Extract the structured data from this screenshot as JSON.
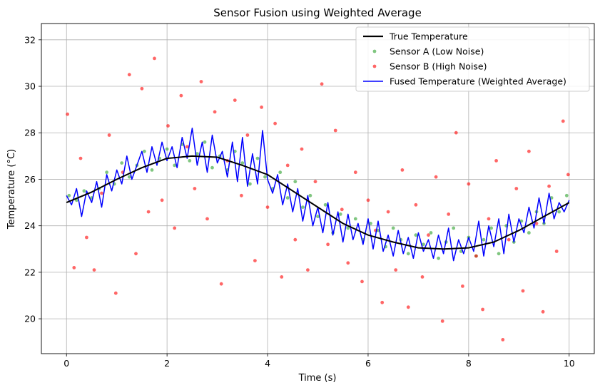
{
  "chart_data": {
    "type": "line",
    "title": "Sensor Fusion using Weighted Average",
    "xlabel": "Time (s)",
    "ylabel": "Temperature (°C)",
    "xlim": [
      -0.5,
      10.5
    ],
    "ylim": [
      18.5,
      32.7
    ],
    "xticks": [
      0,
      2,
      4,
      6,
      8,
      10
    ],
    "yticks": [
      20,
      22,
      24,
      26,
      28,
      30,
      32
    ],
    "grid": true,
    "legend_position": "top-right",
    "colors": {
      "true": "#000000",
      "sensor_a": "#2ca02c",
      "sensor_b": "#ff0000",
      "fused": "#0000ff"
    },
    "series": [
      {
        "name": "True Temperature",
        "kind": "line",
        "x": [
          0,
          0.5,
          1,
          1.5,
          2,
          2.5,
          3,
          3.5,
          4,
          4.5,
          5,
          5.5,
          6,
          6.5,
          7,
          7.5,
          8,
          8.5,
          9,
          9.5,
          10
        ],
        "y": [
          25.0,
          25.45,
          26.0,
          26.5,
          26.9,
          27.0,
          26.95,
          26.6,
          26.2,
          25.5,
          24.8,
          24.1,
          23.6,
          23.3,
          23.05,
          23.0,
          23.05,
          23.3,
          23.8,
          24.4,
          25.0
        ]
      },
      {
        "name": "Sensor A (Low Noise)",
        "kind": "scatter",
        "x": [
          0.05,
          0.2,
          0.35,
          0.5,
          0.65,
          0.8,
          0.95,
          1.1,
          1.25,
          1.4,
          1.55,
          1.7,
          1.85,
          2.0,
          2.15,
          2.3,
          2.45,
          2.6,
          2.75,
          2.9,
          3.05,
          3.2,
          3.35,
          3.5,
          3.65,
          3.8,
          3.95,
          4.1,
          4.25,
          4.4,
          4.55,
          4.7,
          4.85,
          5.0,
          5.15,
          5.3,
          5.45,
          5.6,
          5.75,
          5.9,
          6.05,
          6.2,
          6.35,
          6.5,
          6.65,
          6.8,
          6.95,
          7.1,
          7.25,
          7.4,
          7.55,
          7.7,
          7.85,
          8.0,
          8.15,
          8.3,
          8.45,
          8.6,
          8.75,
          8.9,
          9.05,
          9.2,
          9.35,
          9.5,
          9.65,
          9.8,
          9.95
        ],
        "y": [
          25.3,
          25.1,
          25.5,
          25.2,
          25.6,
          26.3,
          25.8,
          26.7,
          26.1,
          26.6,
          27.2,
          26.4,
          26.9,
          27.3,
          26.6,
          27.5,
          26.8,
          27.1,
          27.6,
          26.5,
          27.0,
          26.4,
          27.2,
          26.7,
          25.8,
          26.9,
          26.1,
          25.6,
          26.3,
          25.2,
          25.9,
          24.8,
          25.3,
          24.4,
          24.9,
          23.7,
          24.5,
          23.9,
          24.3,
          23.4,
          24.1,
          23.8,
          23.1,
          23.9,
          23.4,
          22.8,
          23.6,
          23.2,
          23.7,
          22.6,
          23.3,
          23.9,
          22.9,
          23.5,
          22.7,
          23.4,
          23.9,
          22.8,
          24.0,
          23.3,
          24.2,
          23.7,
          24.6,
          24.1,
          25.2,
          24.6,
          25.3
        ]
      },
      {
        "name": "Sensor B (High Noise)",
        "kind": "scatter",
        "x": [
          0.02,
          0.15,
          0.28,
          0.4,
          0.55,
          0.7,
          0.85,
          0.98,
          1.12,
          1.25,
          1.38,
          1.5,
          1.63,
          1.75,
          1.9,
          2.02,
          2.15,
          2.28,
          2.4,
          2.55,
          2.68,
          2.8,
          2.95,
          3.08,
          3.2,
          3.35,
          3.48,
          3.6,
          3.75,
          3.88,
          4.0,
          4.15,
          4.28,
          4.4,
          4.55,
          4.68,
          4.8,
          4.95,
          5.08,
          5.2,
          5.35,
          5.48,
          5.6,
          5.75,
          5.88,
          6.0,
          6.15,
          6.28,
          6.4,
          6.55,
          6.68,
          6.8,
          6.95,
          7.08,
          7.2,
          7.35,
          7.48,
          7.6,
          7.75,
          7.88,
          8.0,
          8.15,
          8.28,
          8.4,
          8.55,
          8.68,
          8.8,
          8.95,
          9.08,
          9.2,
          9.35,
          9.48,
          9.6,
          9.75,
          9.88,
          9.98
        ],
        "y": [
          28.8,
          22.2,
          26.9,
          23.5,
          22.1,
          25.4,
          27.9,
          21.1,
          26.3,
          30.5,
          22.8,
          29.9,
          24.6,
          31.2,
          25.1,
          28.3,
          23.9,
          29.6,
          27.4,
          25.6,
          30.2,
          24.3,
          28.9,
          21.5,
          26.8,
          29.4,
          25.3,
          27.9,
          22.5,
          29.1,
          24.8,
          28.4,
          21.8,
          26.6,
          23.4,
          27.3,
          22.1,
          25.9,
          30.1,
          23.2,
          28.1,
          24.7,
          22.4,
          26.3,
          21.6,
          25.1,
          23.8,
          20.7,
          24.6,
          22.1,
          26.4,
          20.5,
          24.9,
          21.8,
          23.6,
          26.1,
          19.9,
          24.5,
          28.0,
          21.4,
          25.8,
          22.7,
          20.4,
          24.3,
          26.8,
          19.1,
          23.4,
          25.6,
          21.2,
          27.2,
          24.1,
          20.3,
          25.7,
          22.9,
          28.5,
          26.2
        ]
      },
      {
        "name": "Fused Temperature (Weighted Average)",
        "kind": "line",
        "x": [
          0.0,
          0.1,
          0.2,
          0.3,
          0.4,
          0.5,
          0.6,
          0.7,
          0.8,
          0.9,
          1.0,
          1.1,
          1.2,
          1.3,
          1.4,
          1.5,
          1.6,
          1.7,
          1.8,
          1.9,
          2.0,
          2.1,
          2.2,
          2.3,
          2.4,
          2.5,
          2.6,
          2.7,
          2.8,
          2.9,
          3.0,
          3.1,
          3.2,
          3.3,
          3.4,
          3.5,
          3.6,
          3.7,
          3.8,
          3.9,
          4.0,
          4.1,
          4.2,
          4.3,
          4.4,
          4.5,
          4.6,
          4.7,
          4.8,
          4.9,
          5.0,
          5.1,
          5.2,
          5.3,
          5.4,
          5.5,
          5.6,
          5.7,
          5.8,
          5.9,
          6.0,
          6.1,
          6.2,
          6.3,
          6.4,
          6.5,
          6.6,
          6.7,
          6.8,
          6.9,
          7.0,
          7.1,
          7.2,
          7.3,
          7.4,
          7.5,
          7.6,
          7.7,
          7.8,
          7.9,
          8.0,
          8.1,
          8.2,
          8.3,
          8.4,
          8.5,
          8.6,
          8.7,
          8.8,
          8.9,
          9.0,
          9.1,
          9.2,
          9.3,
          9.4,
          9.5,
          9.6,
          9.7,
          9.8,
          9.9,
          10.0
        ],
        "y": [
          25.3,
          24.9,
          25.6,
          24.4,
          25.5,
          25.0,
          25.9,
          24.8,
          26.2,
          25.5,
          26.4,
          25.8,
          27.0,
          26.0,
          26.6,
          27.2,
          26.3,
          27.4,
          26.6,
          27.6,
          26.8,
          27.4,
          26.5,
          27.8,
          26.9,
          28.2,
          26.6,
          27.6,
          26.3,
          27.9,
          26.7,
          27.2,
          26.1,
          27.6,
          25.9,
          27.8,
          25.7,
          27.1,
          25.8,
          28.1,
          26.0,
          25.4,
          26.2,
          24.9,
          25.8,
          24.6,
          25.6,
          24.2,
          25.3,
          24.0,
          24.8,
          23.7,
          25.0,
          23.6,
          24.6,
          23.3,
          24.5,
          23.4,
          24.1,
          23.2,
          24.3,
          23.0,
          24.2,
          22.9,
          23.6,
          22.7,
          23.8,
          22.8,
          23.5,
          22.6,
          23.7,
          22.9,
          23.4,
          22.6,
          23.6,
          22.8,
          23.9,
          22.5,
          23.4,
          22.8,
          23.5,
          22.9,
          24.2,
          22.7,
          24.0,
          23.1,
          24.3,
          22.8,
          24.5,
          23.3,
          24.3,
          23.7,
          24.8,
          23.9,
          25.2,
          24.1,
          25.4,
          24.3,
          25.0,
          24.6,
          25.1
        ]
      }
    ]
  }
}
